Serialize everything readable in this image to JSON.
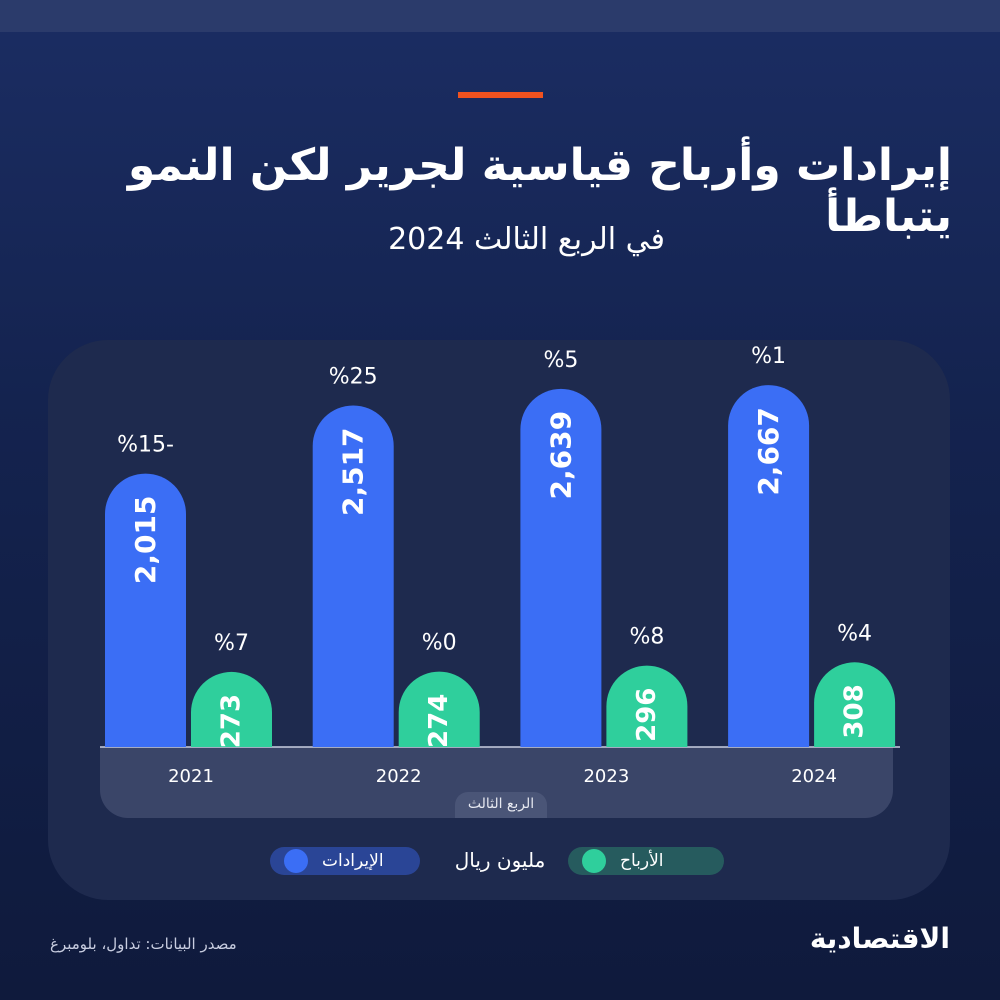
{
  "header": {
    "title": "إيرادات وأرباح قياسية لجرير لكن النمو يتباطأ",
    "subtitle": "في الربع الثالث 2024"
  },
  "chart_data": {
    "type": "bar",
    "categories": [
      "2021",
      "2022",
      "2023",
      "2024"
    ],
    "category_group_label": "الربع الثالث",
    "unit": "مليون ريال",
    "series": [
      {
        "name": "الإيرادات",
        "color": "#3b6ef5",
        "values": [
          2015,
          2517,
          2639,
          2667
        ],
        "labels": [
          "2,015",
          "2,517",
          "2,639",
          "2,667"
        ],
        "growth": [
          "%15-",
          "%25",
          "%5",
          "%1"
        ]
      },
      {
        "name": "الأرباح",
        "color": "#2fcf9c",
        "values": [
          273,
          274,
          296,
          308
        ],
        "labels": [
          "273",
          "274",
          "296",
          "308"
        ],
        "growth": [
          "%7",
          "%0",
          "%8",
          "%4"
        ]
      }
    ]
  },
  "legend": {
    "revenue": "الإيرادات",
    "profit": "الأرباح",
    "unit": "مليون ريال"
  },
  "footer": {
    "source": "مصدر البيانات: تداول، بلومبرغ",
    "logo": "الاقتصادية"
  }
}
